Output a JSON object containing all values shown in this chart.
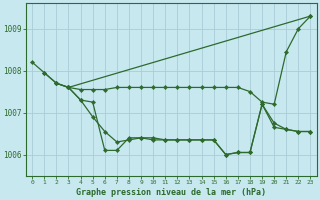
{
  "background_color": "#c8e8f0",
  "grid_color": "#a8ccd8",
  "line_color": "#2d6a2d",
  "title": "Graphe pression niveau de la mer (hPa)",
  "xlim": [
    -0.5,
    23.5
  ],
  "ylim": [
    1005.5,
    1009.6
  ],
  "yticks": [
    1006,
    1007,
    1008,
    1009
  ],
  "xticks": [
    0,
    1,
    2,
    3,
    4,
    5,
    6,
    7,
    8,
    9,
    10,
    11,
    12,
    13,
    14,
    15,
    16,
    17,
    18,
    19,
    20,
    21,
    22,
    23
  ],
  "series": [
    {
      "x": [
        0,
        1,
        2,
        3,
        23
      ],
      "y": [
        1008.2,
        1007.95,
        1007.7,
        1007.6,
        1009.3
      ]
    },
    {
      "x": [
        3,
        4,
        5,
        6,
        7,
        8,
        9,
        10,
        11,
        12,
        13,
        14,
        15,
        16,
        17,
        18,
        19,
        20,
        21,
        22,
        23
      ],
      "y": [
        1007.6,
        1007.55,
        1007.55,
        1007.55,
        1007.6,
        1007.6,
        1007.6,
        1007.6,
        1007.6,
        1007.6,
        1007.6,
        1007.6,
        1007.6,
        1007.6,
        1007.6,
        1007.5,
        1007.25,
        1007.2,
        1008.45,
        1009.0,
        1009.3
      ]
    },
    {
      "x": [
        1,
        2,
        3,
        4,
        5,
        6,
        7,
        8,
        9,
        10,
        11,
        12,
        13,
        14,
        15,
        16,
        17,
        18,
        19,
        20,
        21,
        22,
        23
      ],
      "y": [
        1007.95,
        1007.7,
        1007.6,
        1007.3,
        1006.9,
        1006.55,
        1006.3,
        1006.35,
        1006.4,
        1006.4,
        1006.35,
        1006.35,
        1006.35,
        1006.35,
        1006.35,
        1006.0,
        1006.05,
        1006.05,
        1007.2,
        1006.75,
        1006.6,
        1006.55,
        1006.55
      ]
    },
    {
      "x": [
        2,
        3,
        4,
        5,
        6,
        7,
        8,
        9,
        10,
        11,
        12,
        13,
        14,
        15,
        16,
        17,
        18,
        19,
        20,
        21,
        22,
        23
      ],
      "y": [
        1007.7,
        1007.6,
        1007.3,
        1007.25,
        1006.1,
        1006.1,
        1006.4,
        1006.4,
        1006.35,
        1006.35,
        1006.35,
        1006.35,
        1006.35,
        1006.35,
        1006.0,
        1006.05,
        1006.05,
        1007.2,
        1006.65,
        1006.6,
        1006.55,
        1006.55
      ]
    }
  ]
}
